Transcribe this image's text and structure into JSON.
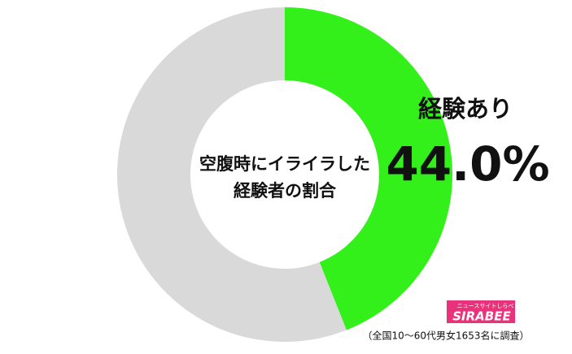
{
  "chart_data": {
    "type": "donut",
    "title_lines": [
      "空腹時にイライラした",
      "経験者の割合"
    ],
    "categories": [
      "経験あり",
      null
    ],
    "values": [
      44.0,
      56.0
    ],
    "value_labels": [
      "44.0%",
      null
    ],
    "colors": [
      "#33f01a",
      "#d9d9d9"
    ],
    "start_angle": 0,
    "direction": "clockwise",
    "source": "（全国10〜60代男女1653名に調査）",
    "logo": {
      "brand": "SIRABEE",
      "tagline": "ニュースサイトしらべぇ"
    }
  }
}
